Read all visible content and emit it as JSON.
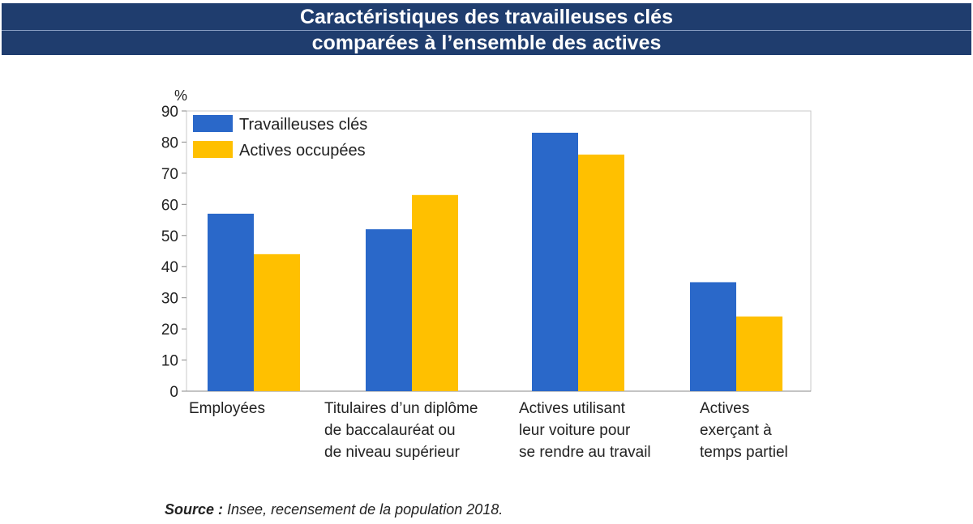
{
  "header": {
    "title_line1": "Caractéristiques des travailleuses clés",
    "title_line2": "comparées à l’ensemble des actives"
  },
  "colors": {
    "banner": "#1f3d6e",
    "series1": "#2a68c9",
    "series2": "#ffc000"
  },
  "chart_data": {
    "type": "bar",
    "ylabel": "%",
    "ylim": [
      0,
      90
    ],
    "yticks": [
      0,
      10,
      20,
      30,
      40,
      50,
      60,
      70,
      80,
      90
    ],
    "grid": false,
    "legend_position": "top-left",
    "categories": [
      [
        "Employées"
      ],
      [
        "Titulaires d’un diplôme",
        "de baccalauréat ou",
        "de niveau supérieur"
      ],
      [
        "Actives utilisant",
        "leur voiture pour",
        "se rendre au travail"
      ],
      [
        "Actives",
        "exerçant à",
        "temps partiel"
      ]
    ],
    "series": [
      {
        "name": "Travailleuses clés",
        "values": [
          57,
          52,
          83,
          35
        ]
      },
      {
        "name": "Actives occupées",
        "values": [
          44,
          63,
          76,
          24
        ]
      }
    ]
  },
  "source": {
    "label": "Source :",
    "text": " Insee, recensement de la population 2018."
  }
}
